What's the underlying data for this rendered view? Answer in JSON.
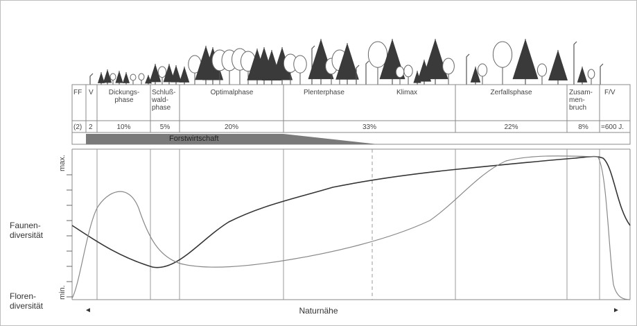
{
  "phases": {
    "ff": "FF",
    "v": "V",
    "dickung": "Dickungs-\nphase",
    "schluss": "Schluß-\nwald-\nphase",
    "optimal": "Optimalphase",
    "plenter": "Plenterphase",
    "klimax": "Klimax",
    "zerfall": "Zerfallsphase",
    "zusammen": "Zusam-\nmen-\nbruch",
    "fv": "F/V"
  },
  "percents": {
    "ff": "(2)",
    "v": "2",
    "dickung": "10%",
    "schluss": "5%",
    "optimal": "20%",
    "plenter": "33%",
    "zerfall": "22%",
    "zusammen": "8%",
    "fv": "=600 J."
  },
  "forstwirtschaft_label": "Forstwirtschaft",
  "axis": {
    "max": "max.",
    "min": "min.",
    "left_arrow": "◄",
    "right_arrow": "►",
    "xlabel": "Naturnähe"
  },
  "side_labels": {
    "fauna": "Faunen-\ndiversität",
    "flora": "Floren-\ndiversität"
  },
  "colors": {
    "line_dark": "#333333",
    "line_light": "#777777",
    "bar_fill": "#7a7a7a"
  }
}
